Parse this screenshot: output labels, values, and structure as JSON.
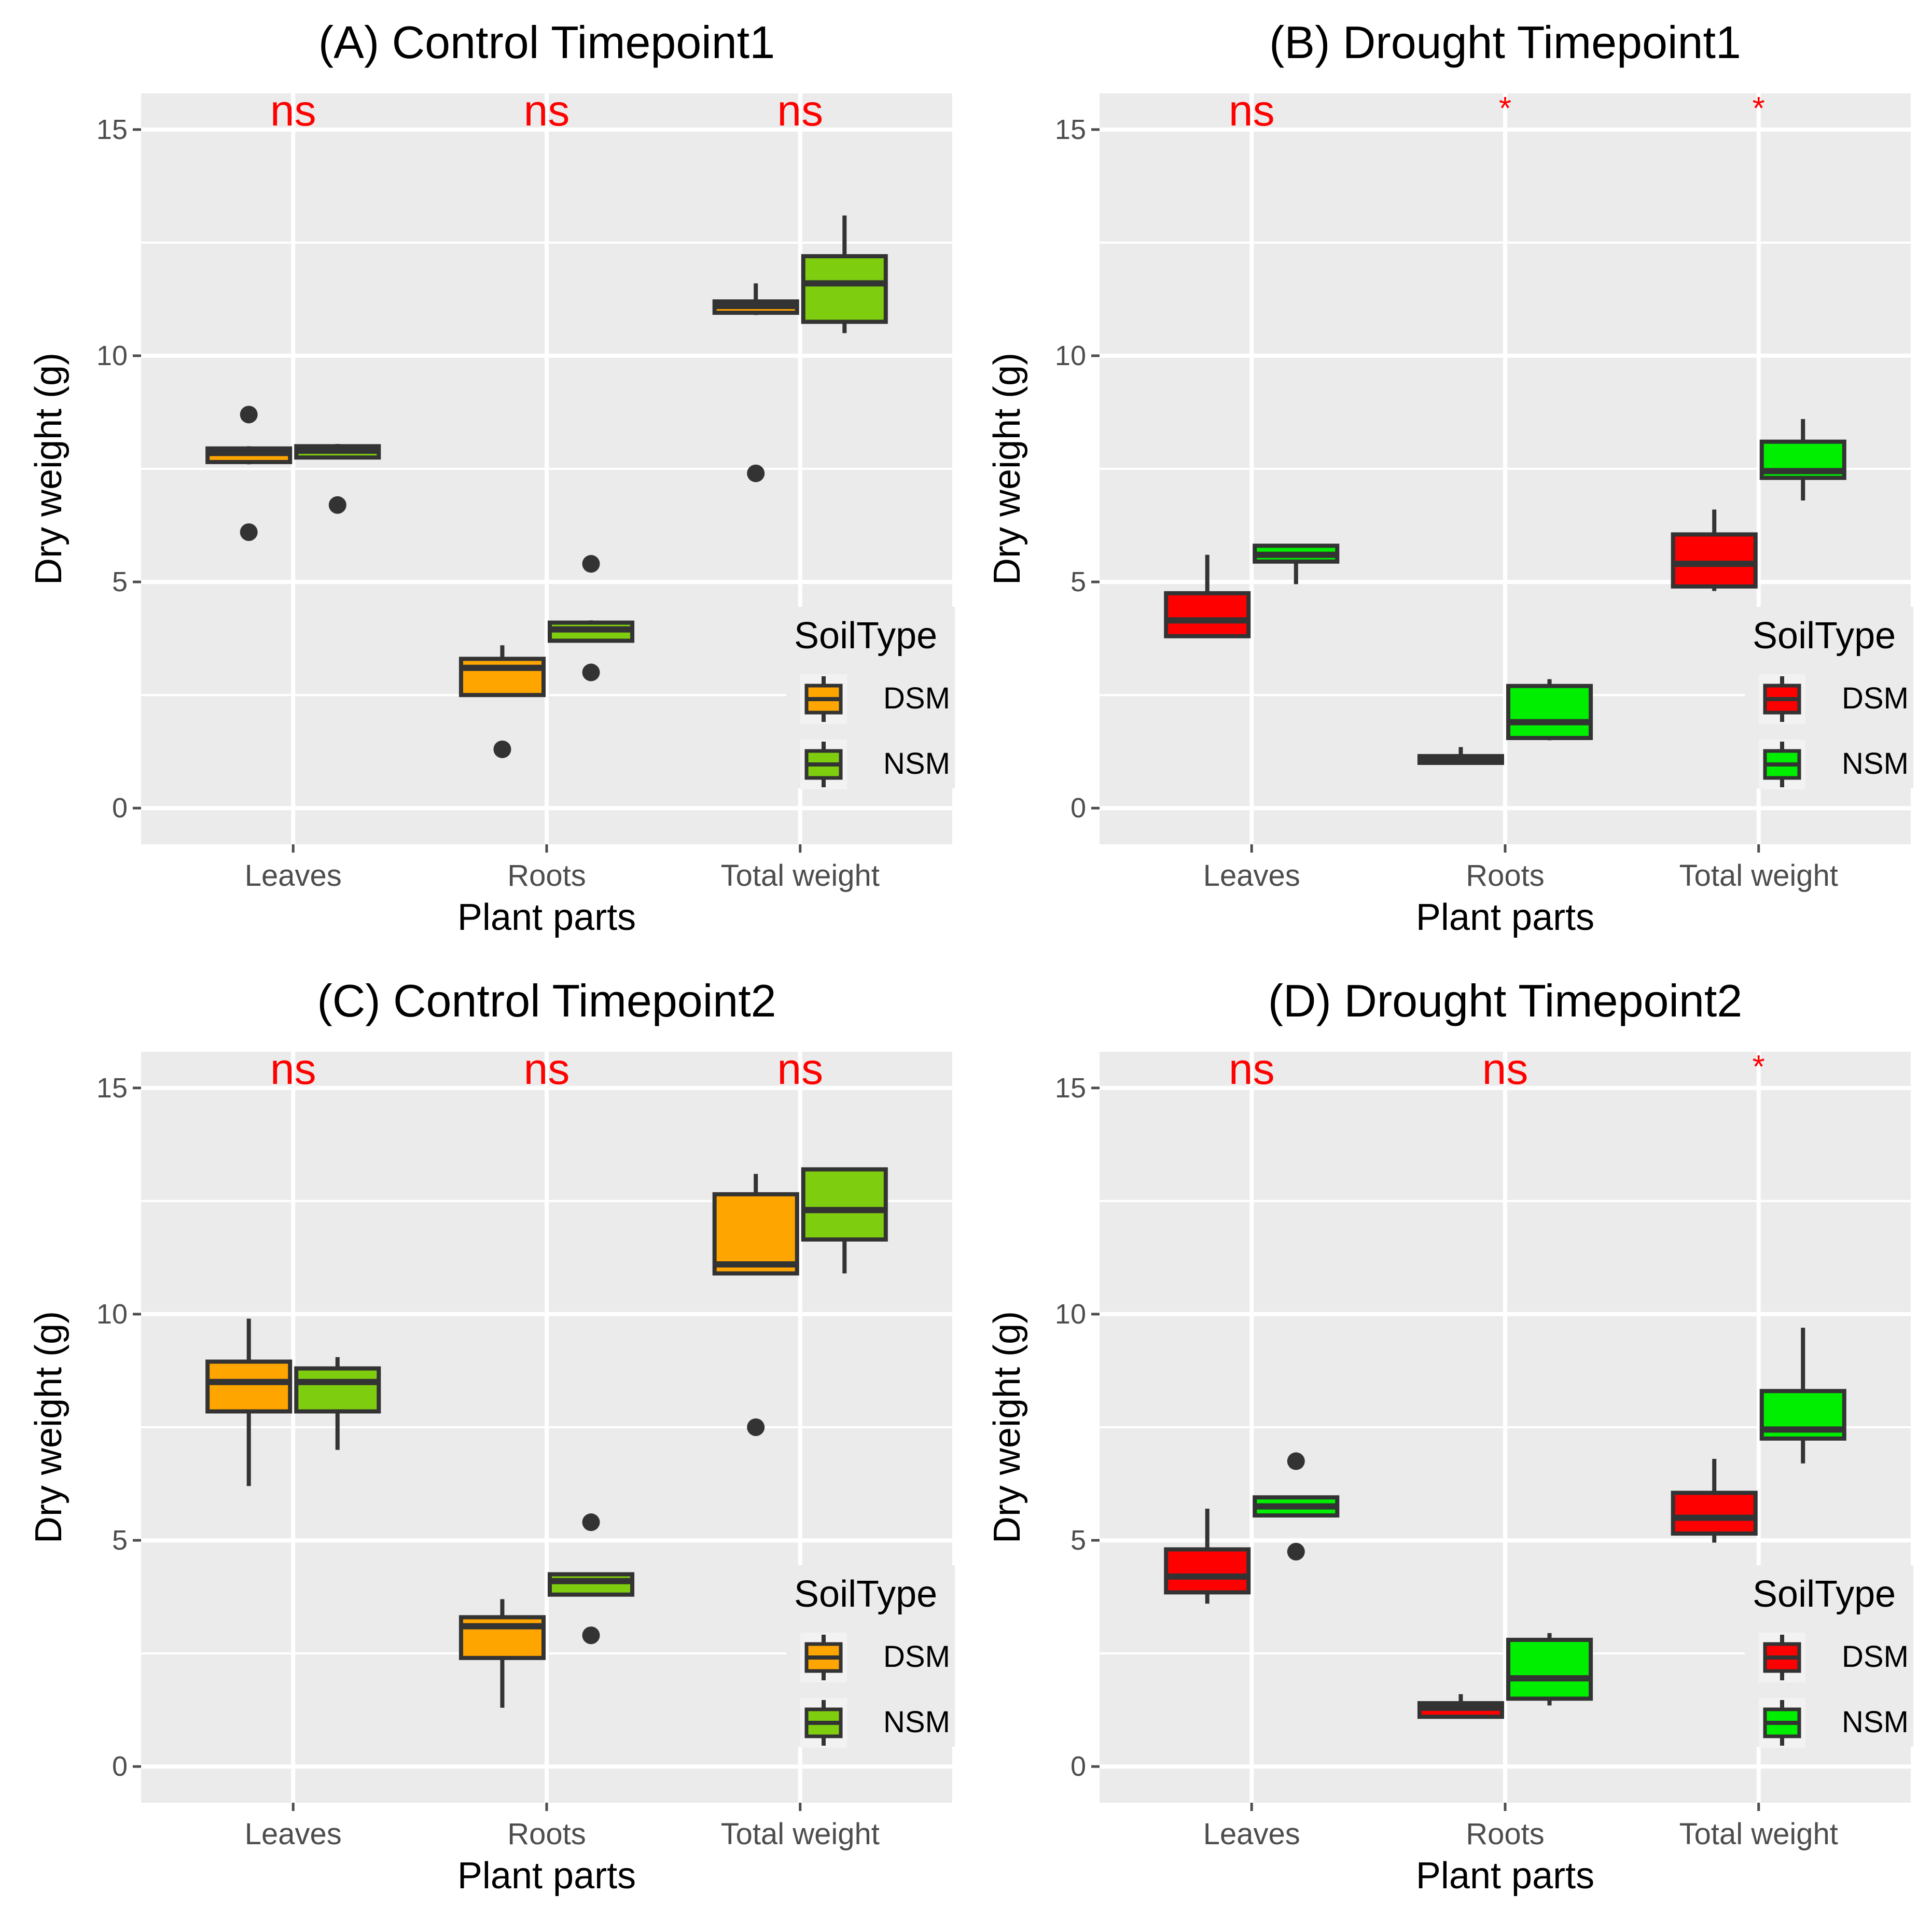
{
  "colors": {
    "panel_bg": "#ebebeb",
    "grid": "#ffffff",
    "box_outline": "#333333",
    "whisker": "#333333",
    "outlier": "#333333",
    "sig_text": "#ff0000",
    "axis_text": "#4d4d4d",
    "title_text": "#000000"
  },
  "chart_data": [
    {
      "type": "boxplot",
      "panel": "A",
      "title": "(A) Control Timepoint1",
      "xlabel": "Plant parts",
      "ylabel": "Dry weight (g)",
      "ylim": [
        -0.8,
        15.8
      ],
      "yticks": [
        0,
        5,
        10,
        15
      ],
      "categories": [
        "Leaves",
        "Roots",
        "Total weight"
      ],
      "significance": [
        "ns",
        "ns",
        "ns"
      ],
      "legend": {
        "title": "SoilType",
        "entries": [
          {
            "name": "DSM",
            "color": "#ffa500"
          },
          {
            "name": "NSM",
            "color": "#7fcd0f"
          }
        ]
      },
      "series": [
        {
          "name": "DSM",
          "color": "#ffa500",
          "boxes": [
            {
              "whisker_low": 7.6,
              "q1": 7.65,
              "median": 7.85,
              "q3": 7.95,
              "whisker_high": 8.0,
              "outliers": [
                8.7,
                6.1
              ]
            },
            {
              "whisker_low": 2.5,
              "q1": 2.5,
              "median": 3.1,
              "q3": 3.3,
              "whisker_high": 3.6,
              "outliers": [
                1.3
              ]
            },
            {
              "whisker_low": 10.9,
              "q1": 10.95,
              "median": 11.1,
              "q3": 11.2,
              "whisker_high": 11.6,
              "outliers": [
                7.4
              ]
            }
          ]
        },
        {
          "name": "NSM",
          "color": "#7fcd0f",
          "boxes": [
            {
              "whisker_low": 7.75,
              "q1": 7.75,
              "median": 7.9,
              "q3": 8.0,
              "whisker_high": 8.05,
              "outliers": [
                6.7
              ]
            },
            {
              "whisker_low": 3.7,
              "q1": 3.7,
              "median": 3.95,
              "q3": 4.1,
              "whisker_high": 4.15,
              "outliers": [
                5.4,
                3.0
              ]
            },
            {
              "whisker_low": 10.5,
              "q1": 10.75,
              "median": 11.6,
              "q3": 12.2,
              "whisker_high": 13.1,
              "outliers": []
            }
          ]
        }
      ]
    },
    {
      "type": "boxplot",
      "panel": "B",
      "title": "(B) Drought Timepoint1",
      "xlabel": "Plant parts",
      "ylabel": "Dry weight (g)",
      "ylim": [
        -0.8,
        15.8
      ],
      "yticks": [
        0,
        5,
        10,
        15
      ],
      "categories": [
        "Leaves",
        "Roots",
        "Total weight"
      ],
      "significance": [
        "ns",
        "*",
        "*"
      ],
      "legend": {
        "title": "SoilType",
        "entries": [
          {
            "name": "DSM",
            "color": "#ff0000"
          },
          {
            "name": "NSM",
            "color": "#00ee00"
          }
        ]
      },
      "series": [
        {
          "name": "DSM",
          "color": "#ff0000",
          "boxes": [
            {
              "whisker_low": 3.8,
              "q1": 3.8,
              "median": 4.15,
              "q3": 4.75,
              "whisker_high": 5.6,
              "outliers": []
            },
            {
              "whisker_low": 1.0,
              "q1": 1.0,
              "median": 1.1,
              "q3": 1.15,
              "whisker_high": 1.35,
              "outliers": []
            },
            {
              "whisker_low": 4.8,
              "q1": 4.9,
              "median": 5.4,
              "q3": 6.05,
              "whisker_high": 6.6,
              "outliers": []
            }
          ]
        },
        {
          "name": "NSM",
          "color": "#00ee00",
          "boxes": [
            {
              "whisker_low": 4.95,
              "q1": 5.45,
              "median": 5.6,
              "q3": 5.8,
              "whisker_high": 5.8,
              "outliers": []
            },
            {
              "whisker_low": 1.5,
              "q1": 1.55,
              "median": 1.9,
              "q3": 2.7,
              "whisker_high": 2.85,
              "outliers": []
            },
            {
              "whisker_low": 6.8,
              "q1": 7.3,
              "median": 7.45,
              "q3": 8.1,
              "whisker_high": 8.6,
              "outliers": []
            }
          ]
        }
      ]
    },
    {
      "type": "boxplot",
      "panel": "C",
      "title": "(C) Control Timepoint2",
      "xlabel": "Plant parts",
      "ylabel": "Dry weight (g)",
      "ylim": [
        -0.8,
        15.8
      ],
      "yticks": [
        0,
        5,
        10,
        15
      ],
      "categories": [
        "Leaves",
        "Roots",
        "Total weight"
      ],
      "significance": [
        "ns",
        "ns",
        "ns"
      ],
      "legend": {
        "title": "SoilType",
        "entries": [
          {
            "name": "DSM",
            "color": "#ffa500"
          },
          {
            "name": "NSM",
            "color": "#7fcd0f"
          }
        ]
      },
      "series": [
        {
          "name": "DSM",
          "color": "#ffa500",
          "boxes": [
            {
              "whisker_low": 6.2,
              "q1": 7.85,
              "median": 8.5,
              "q3": 8.95,
              "whisker_high": 9.9,
              "outliers": []
            },
            {
              "whisker_low": 1.3,
              "q1": 2.4,
              "median": 3.1,
              "q3": 3.3,
              "whisker_high": 3.7,
              "outliers": []
            },
            {
              "whisker_low": 10.9,
              "q1": 10.9,
              "median": 11.1,
              "q3": 12.65,
              "whisker_high": 13.1,
              "outliers": [
                7.5
              ]
            }
          ]
        },
        {
          "name": "NSM",
          "color": "#7fcd0f",
          "boxes": [
            {
              "whisker_low": 7.0,
              "q1": 7.85,
              "median": 8.5,
              "q3": 8.8,
              "whisker_high": 9.05,
              "outliers": []
            },
            {
              "whisker_low": 3.8,
              "q1": 3.8,
              "median": 4.1,
              "q3": 4.25,
              "whisker_high": 4.25,
              "outliers": [
                5.4,
                2.9
              ]
            },
            {
              "whisker_low": 10.9,
              "q1": 11.65,
              "median": 12.3,
              "q3": 13.2,
              "whisker_high": 13.2,
              "outliers": []
            }
          ]
        }
      ]
    },
    {
      "type": "boxplot",
      "panel": "D",
      "title": "(D) Drought Timepoint2",
      "xlabel": "Plant parts",
      "ylabel": "Dry weight (g)",
      "ylim": [
        -0.8,
        15.8
      ],
      "yticks": [
        0,
        5,
        10,
        15
      ],
      "categories": [
        "Leaves",
        "Roots",
        "Total weight"
      ],
      "significance": [
        "ns",
        "ns",
        "*"
      ],
      "legend": {
        "title": "SoilType",
        "entries": [
          {
            "name": "DSM",
            "color": "#ff0000"
          },
          {
            "name": "NSM",
            "color": "#00ee00"
          }
        ]
      },
      "series": [
        {
          "name": "DSM",
          "color": "#ff0000",
          "boxes": [
            {
              "whisker_low": 3.6,
              "q1": 3.85,
              "median": 4.2,
              "q3": 4.8,
              "whisker_high": 5.7,
              "outliers": []
            },
            {
              "whisker_low": 1.1,
              "q1": 1.1,
              "median": 1.3,
              "q3": 1.4,
              "whisker_high": 1.6,
              "outliers": []
            },
            {
              "whisker_low": 4.95,
              "q1": 5.15,
              "median": 5.5,
              "q3": 6.05,
              "whisker_high": 6.8,
              "outliers": []
            }
          ]
        },
        {
          "name": "NSM",
          "color": "#00ee00",
          "boxes": [
            {
              "whisker_low": 5.55,
              "q1": 5.55,
              "median": 5.75,
              "q3": 5.95,
              "whisker_high": 5.95,
              "outliers": [
                6.75,
                4.75
              ]
            },
            {
              "whisker_low": 1.35,
              "q1": 1.5,
              "median": 1.95,
              "q3": 2.8,
              "whisker_high": 2.95,
              "outliers": []
            },
            {
              "whisker_low": 6.7,
              "q1": 7.25,
              "median": 7.45,
              "q3": 8.3,
              "whisker_high": 9.7,
              "outliers": []
            }
          ]
        }
      ]
    }
  ]
}
